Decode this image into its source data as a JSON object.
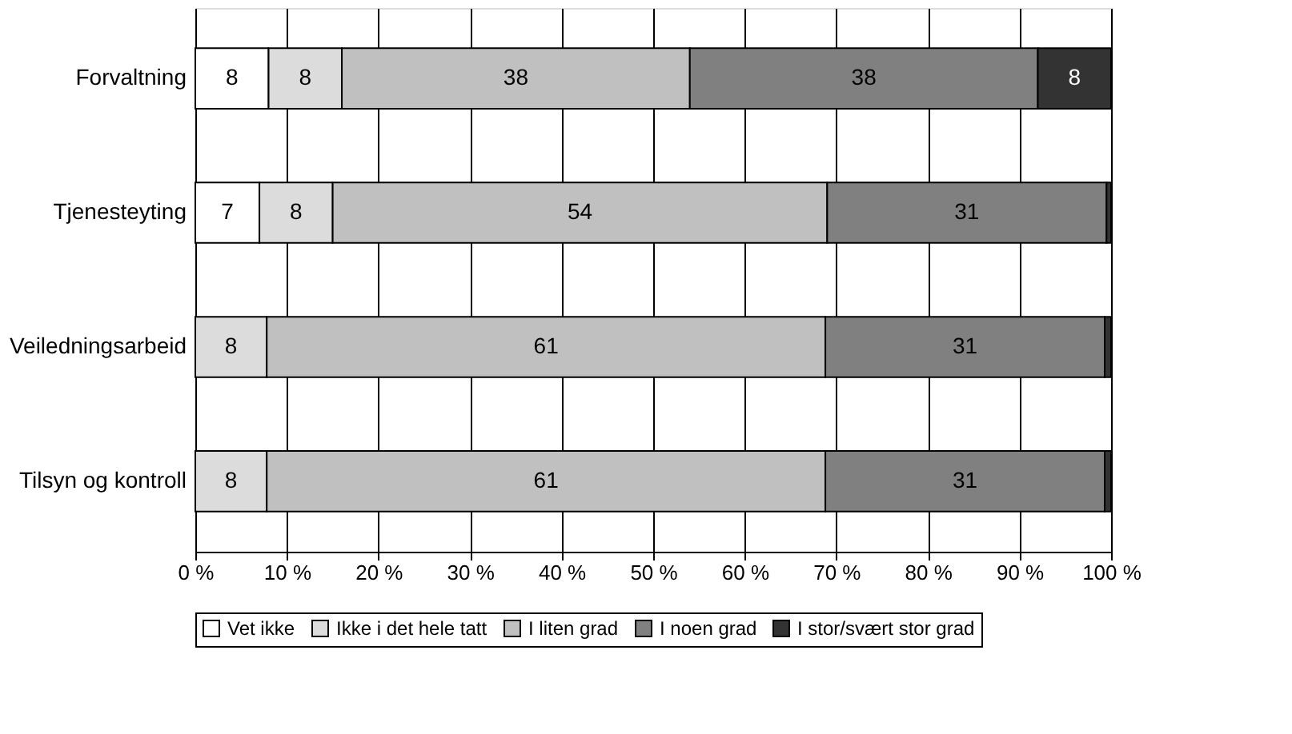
{
  "chart_data": {
    "type": "bar",
    "orientation": "horizontal",
    "stacked": true,
    "categories": [
      "Forvaltning",
      "Tjenesteyting",
      "Veiledningsarbeid",
      "Tilsyn og kontroll"
    ],
    "series": [
      {
        "name": "Vet ikke",
        "color": "#ffffff",
        "values": [
          8,
          7,
          0,
          0
        ],
        "value_labels": [
          "8",
          "7",
          null,
          null
        ]
      },
      {
        "name": "Ikke i det hele tatt",
        "color": "#dcdcdc",
        "values": [
          8,
          8,
          7.8,
          7.8
        ],
        "value_labels": [
          "8",
          "8",
          "8",
          "8"
        ]
      },
      {
        "name": "I liten grad",
        "color": "#c0c0c0",
        "values": [
          38,
          54,
          61,
          61
        ],
        "value_labels": [
          "38",
          "54",
          "61",
          "61"
        ]
      },
      {
        "name": "I noen grad",
        "color": "#808080",
        "values": [
          38,
          30.5,
          30.5,
          30.5
        ],
        "value_labels": [
          "38",
          "31",
          "31",
          "31"
        ]
      },
      {
        "name": "I stor/svært stor grad",
        "color": "#333333",
        "values": [
          8,
          0.5,
          0.7,
          0.7
        ],
        "value_labels": [
          "8",
          null,
          null,
          null
        ]
      }
    ],
    "xlim": [
      0,
      100
    ],
    "xticks": [
      {
        "value": 0,
        "label": "0 %"
      },
      {
        "value": 10,
        "label": "10 %"
      },
      {
        "value": 20,
        "label": "20 %"
      },
      {
        "value": 30,
        "label": "30 %"
      },
      {
        "value": 40,
        "label": "40 %"
      },
      {
        "value": 50,
        "label": "50 %"
      },
      {
        "value": 60,
        "label": "60 %"
      },
      {
        "value": 70,
        "label": "70 %"
      },
      {
        "value": 80,
        "label": "80 %"
      },
      {
        "value": 90,
        "label": "90 %"
      },
      {
        "value": 100,
        "label": "100 %"
      }
    ],
    "grid": "x",
    "legend": "bottom"
  }
}
